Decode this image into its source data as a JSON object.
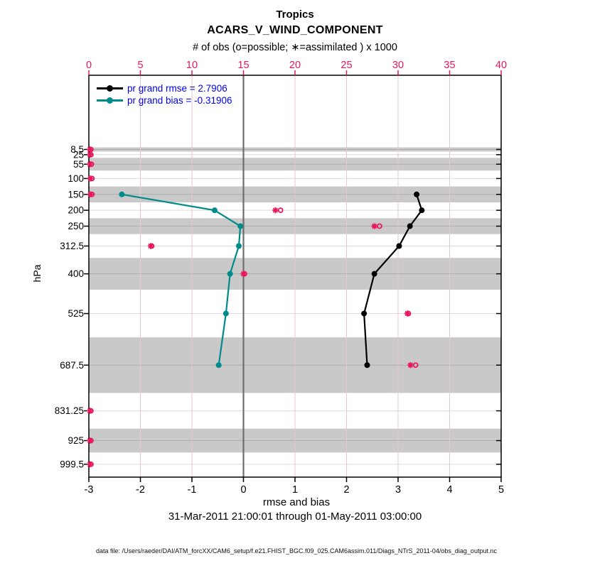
{
  "title": {
    "region": "Tropics",
    "variable": "ACARS_V_WIND_COMPONENT"
  },
  "subtitle": "31-Mar-2011 21:00:01 through 01-May-2011 03:00:00",
  "footer": "data file: /Users/raeder/DAI/ATM_forcXX/CAM6_setup/f.e21.FHIST_BGC.f09_025.CAM6assim.011/Diags_NTrS_2011-04/obs_diag_output.nc",
  "colors": {
    "magenta": "#e8175d",
    "teal": "#008b8b",
    "black": "#000000",
    "legend_text": "#0000ee",
    "band": "#c9c9c9",
    "grid_h": "rgba(0,0,0,0.14)",
    "grid_v": "#ecc5d0",
    "zero_line": "#6e6e6e"
  },
  "legend": [
    {
      "name": "pr-grand-rmse",
      "label": "pr grand rmse = 2.7906",
      "color": "#000000"
    },
    {
      "name": "pr-grand-bias",
      "label": "pr grand bias = -0.31906",
      "color": "#008b8b"
    }
  ],
  "top_axis": {
    "label": "# of obs (o=possible; ∗=assimilated ) x 1000",
    "ticks": [
      0,
      5,
      10,
      15,
      20,
      25,
      30,
      35,
      40
    ]
  },
  "bottom_axis": {
    "label": "rmse and bias",
    "ticks": [
      -3,
      -2,
      -1,
      0,
      1,
      2,
      3,
      4,
      5
    ]
  },
  "left_axis": {
    "label": "hPa",
    "ticks": [
      {
        "v": 8.5,
        "label": "8.5"
      },
      {
        "v": 25,
        "label": "25"
      },
      {
        "v": 55,
        "label": "55"
      },
      {
        "v": 100,
        "label": "100"
      },
      {
        "v": 150,
        "label": "150"
      },
      {
        "v": 200,
        "label": "200"
      },
      {
        "v": 250,
        "label": "250"
      },
      {
        "v": 312.5,
        "label": "312.5"
      },
      {
        "v": 400,
        "label": "400"
      },
      {
        "v": 525,
        "label": "525"
      },
      {
        "v": 687.5,
        "label": "687.5"
      },
      {
        "v": 831.25,
        "label": "831.25"
      },
      {
        "v": 925,
        "label": "925"
      },
      {
        "v": 999.5,
        "label": "999.5"
      }
    ]
  },
  "chart_data": {
    "type": "line",
    "title": "Tropics ACARS_V_WIND_COMPONENT",
    "xlabel": "rmse and bias",
    "ylabel": "hPa",
    "top_xlabel": "# of obs (o=possible; ∗=assimilated ) x 1000",
    "xlim_bottom": [
      -3,
      5
    ],
    "xlim_top": [
      0,
      40
    ],
    "ylim_hpa": [
      -225,
      1040
    ],
    "y_axis_inverted_linear_pressure": true,
    "grid": true,
    "legend_position": "top-left-inside",
    "grand_rmse": 2.7906,
    "grand_bias": -0.31906,
    "zero_reference_line_x": 0,
    "gray_bands_hpa": [
      [
        2,
        15
      ],
      [
        35,
        75
      ],
      [
        125,
        175
      ],
      [
        225,
        275
      ],
      [
        350,
        450
      ],
      [
        600,
        775
      ],
      [
        887.5,
        962.5
      ]
    ],
    "levels_with_data": [
      150,
      200,
      250,
      312.5,
      400,
      525,
      687.5
    ],
    "series": [
      {
        "name": "pr grand rmse",
        "color": "#000000",
        "values": [
          3.36,
          3.46,
          3.23,
          3.02,
          2.54,
          2.34,
          2.4
        ]
      },
      {
        "name": "pr grand bias",
        "color": "#008b8b",
        "values": [
          -2.36,
          -0.56,
          -0.06,
          -0.09,
          -0.26,
          -0.34,
          -0.48
        ]
      }
    ],
    "obs_counts_x1000": {
      "levels": [
        8.5,
        25,
        55,
        100,
        150,
        200,
        250,
        312.5,
        400,
        525,
        687.5,
        831.25,
        925,
        999.5
      ],
      "possible": [
        0.2,
        0.2,
        0.25,
        0.3,
        0.3,
        18.6,
        28.2,
        6.1,
        15.1,
        31.0,
        31.7,
        0.2,
        0.2,
        0.2
      ],
      "assimilated": [
        0.1,
        0.1,
        0.1,
        0.15,
        0.15,
        18.1,
        27.7,
        6.0,
        15.0,
        30.9,
        31.2,
        0.1,
        0.1,
        0.1
      ]
    }
  }
}
